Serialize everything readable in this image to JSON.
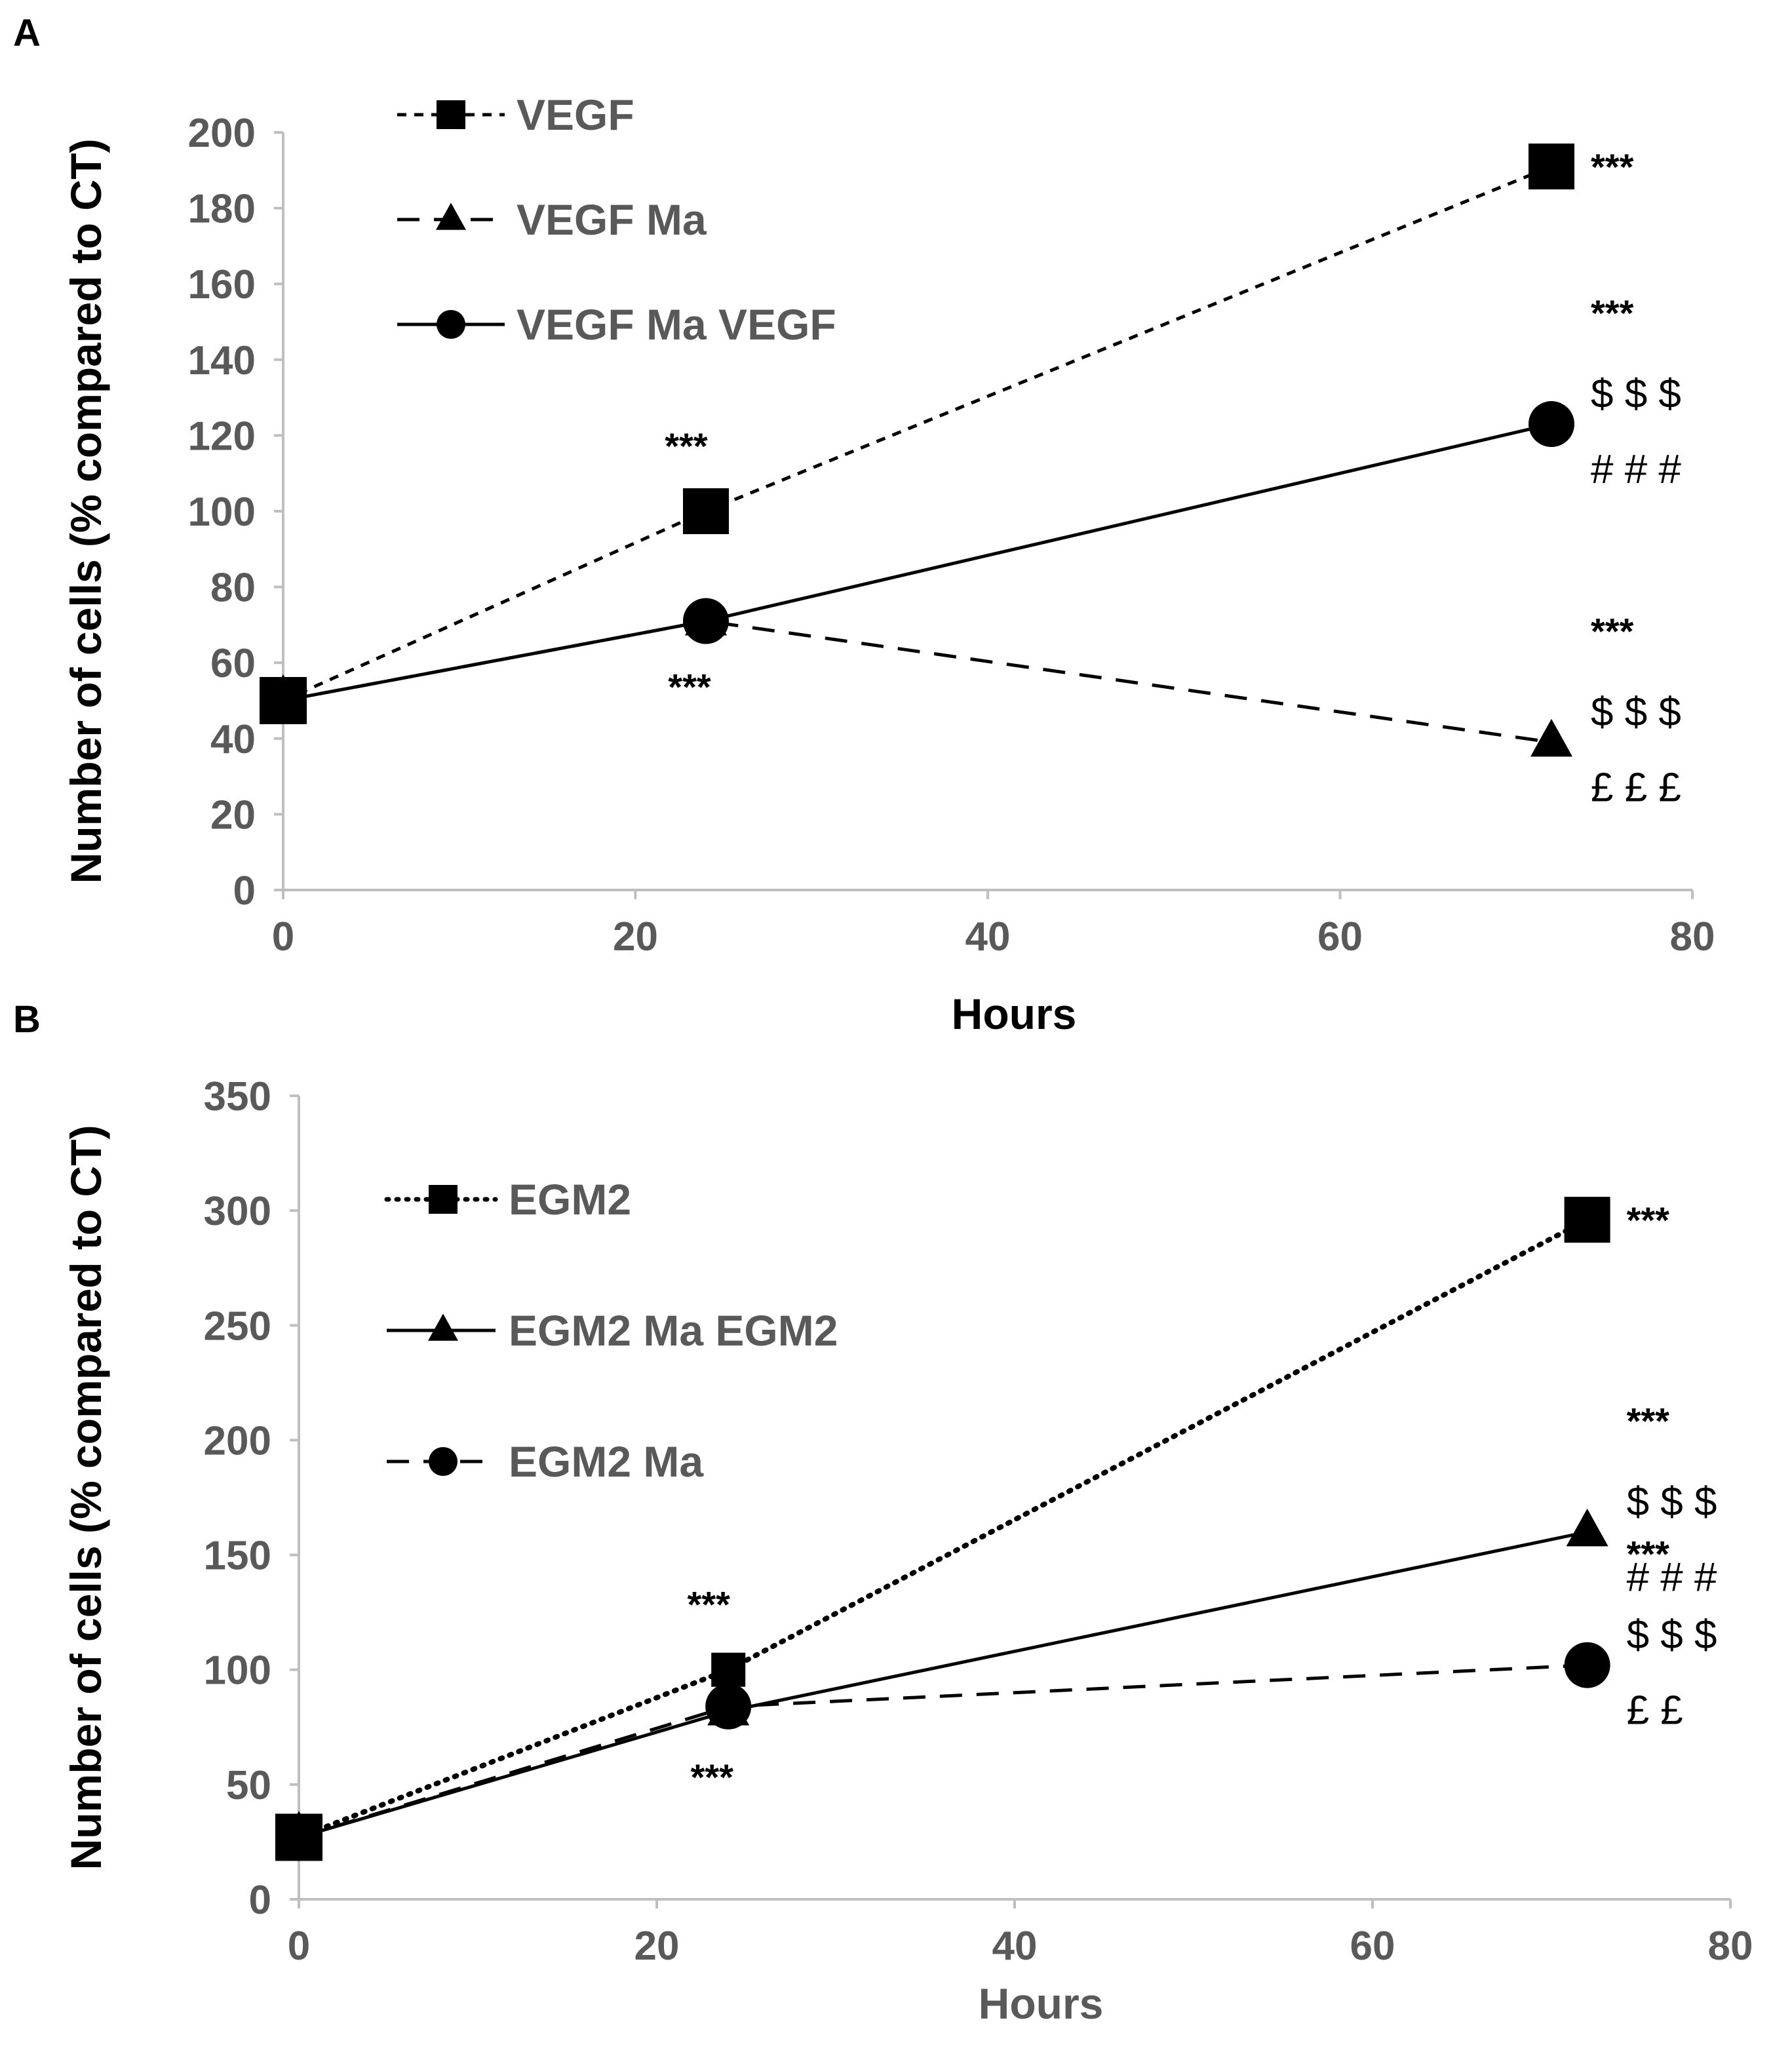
{
  "chart_data": [
    {
      "panel": "A",
      "type": "line",
      "xlabel": "Hours",
      "ylabel": "Number of cells (% compared to CT)",
      "xlim": [
        0,
        80
      ],
      "ylim": [
        0,
        200
      ],
      "xticks": [
        0,
        20,
        40,
        60,
        80
      ],
      "yticks": [
        0,
        20,
        40,
        60,
        80,
        100,
        120,
        140,
        160,
        180,
        200
      ],
      "grid": false,
      "legend_position": "top-left",
      "series": [
        {
          "name": "VEGF",
          "marker": "square",
          "line": "short-dash",
          "x": [
            0,
            24,
            72
          ],
          "y": [
            50,
            100,
            191
          ]
        },
        {
          "name": "VEGF Ma",
          "marker": "triangle",
          "line": "long-dash",
          "x": [
            0,
            24,
            72
          ],
          "y": [
            50,
            71,
            39
          ]
        },
        {
          "name": "VEGF Ma VEGF",
          "marker": "circle",
          "line": "solid",
          "x": [
            0,
            24,
            72
          ],
          "y": [
            50,
            71,
            123
          ]
        }
      ],
      "annotations": [
        {
          "text": "***",
          "x": 24,
          "y": 100,
          "placement": "above"
        },
        {
          "text": "***",
          "x": 24,
          "y": 71,
          "placement": "below"
        },
        {
          "text": "***",
          "x": 72,
          "y": 191,
          "placement": "right"
        },
        {
          "lines": [
            "***",
            "$ $ $",
            "# # #"
          ],
          "x": 72,
          "y": 123,
          "placement": "right"
        },
        {
          "lines": [
            "***",
            "$ $ $",
            "£ £ £"
          ],
          "x": 72,
          "y": 39,
          "placement": "right"
        }
      ]
    },
    {
      "panel": "B",
      "type": "line",
      "xlabel": "Hours",
      "ylabel": "Number of cells (% compared to CT)",
      "xlim": [
        0,
        80
      ],
      "ylim": [
        0,
        350
      ],
      "xticks": [
        0,
        20,
        40,
        60,
        80
      ],
      "yticks": [
        0,
        50,
        100,
        150,
        200,
        250,
        300,
        350
      ],
      "grid": false,
      "legend_position": "top-left",
      "series": [
        {
          "name": "EGM2",
          "marker": "square",
          "line": "dotted",
          "x": [
            0,
            24,
            72
          ],
          "y": [
            27,
            100,
            296
          ]
        },
        {
          "name": "EGM2 Ma EGM2",
          "marker": "triangle",
          "line": "solid",
          "x": [
            0,
            24,
            72
          ],
          "y": [
            27,
            82,
            160
          ]
        },
        {
          "name": "EGM2 Ma",
          "marker": "circle",
          "line": "long-dash",
          "x": [
            0,
            24,
            72
          ],
          "y": [
            27,
            84,
            102
          ]
        }
      ],
      "annotations": [
        {
          "text": "***",
          "x": 24,
          "y": 100,
          "placement": "above"
        },
        {
          "text": "***",
          "x": 24,
          "y": 82,
          "placement": "below"
        },
        {
          "text": "***",
          "x": 72,
          "y": 296,
          "placement": "right"
        },
        {
          "lines": [
            "***",
            "$ $ $",
            "# # #"
          ],
          "x": 72,
          "y": 160,
          "placement": "right"
        },
        {
          "lines": [
            "***",
            "$ $ $",
            "£ £"
          ],
          "x": 72,
          "y": 102,
          "placement": "right"
        }
      ]
    }
  ]
}
